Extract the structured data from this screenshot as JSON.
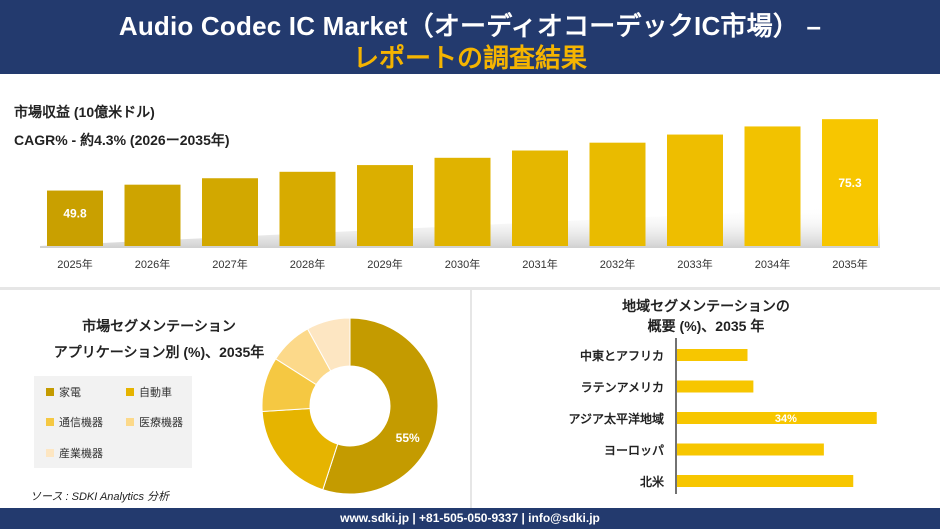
{
  "header": {
    "title": "Audio Codec IC Market（オーディオコーデックIC市場） –",
    "subtitle": "レポートの調査結果"
  },
  "revenue": {
    "label": "市場収益 (10億米ドル)",
    "cagr": "CAGR% - 約4.3% (2026ー2035年)"
  },
  "segmentation": {
    "title_line1": "市場セグメンテーション",
    "title_line2": "アプリケーション別 (%)、2035年",
    "legend": [
      "家電",
      "自動車",
      "通信機器",
      "医療機器",
      "産業機器"
    ]
  },
  "regional": {
    "title_line1": "地域セグメンテーションの",
    "title_line2": "概要 (%)、2035 年"
  },
  "source": "ソース : SDKI Analytics 分析",
  "footer": "www.sdki.jp | +81-505-050-9337 | info@sdki.jp",
  "colors": {
    "navy": "#233a6e",
    "gold_dark": "#c9a000",
    "gold_light": "#f7c600",
    "accent_orange": "#f5b400"
  },
  "chart_data": [
    {
      "type": "bar",
      "categories": [
        "2025年",
        "2026年",
        "2027年",
        "2028年",
        "2029年",
        "2030年",
        "2031年",
        "2032年",
        "2033年",
        "2034年",
        "2035年"
      ],
      "values": [
        49.8,
        51.9,
        54.2,
        56.5,
        58.9,
        61.5,
        64.1,
        66.9,
        69.8,
        72.7,
        75.3
      ],
      "data_labels": {
        "0": "49.8",
        "10": "75.3"
      },
      "ylim": [
        30,
        80
      ]
    },
    {
      "type": "pie",
      "labels": [
        "家電",
        "自動車",
        "通信機器",
        "医療機器",
        "産業機器"
      ],
      "values": [
        55,
        19,
        10,
        8,
        8
      ],
      "data_labels": {
        "0": "55%"
      },
      "colors": [
        "#c49b00",
        "#e6b400",
        "#f5c842",
        "#fcd98a",
        "#fde6c2"
      ]
    },
    {
      "type": "bar",
      "orientation": "horizontal",
      "categories": [
        "中東とアフリカ",
        "ラテンアメリカ",
        "アジア太平洋地域",
        "ヨーロッパ",
        "北米"
      ],
      "values": [
        12,
        13,
        34,
        25,
        30
      ],
      "data_labels": {
        "2": "34%"
      },
      "xlim": [
        0,
        40
      ]
    }
  ]
}
